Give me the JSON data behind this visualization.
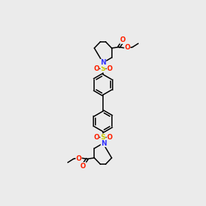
{
  "background_color": "#ebebeb",
  "bond_color": "#000000",
  "N_color": "#3333ff",
  "O_color": "#ff2200",
  "S_color": "#cccc00",
  "figsize": [
    3.0,
    3.0
  ],
  "dpi": 100,
  "xlim": [
    0,
    10
  ],
  "ylim": [
    0,
    20
  ]
}
